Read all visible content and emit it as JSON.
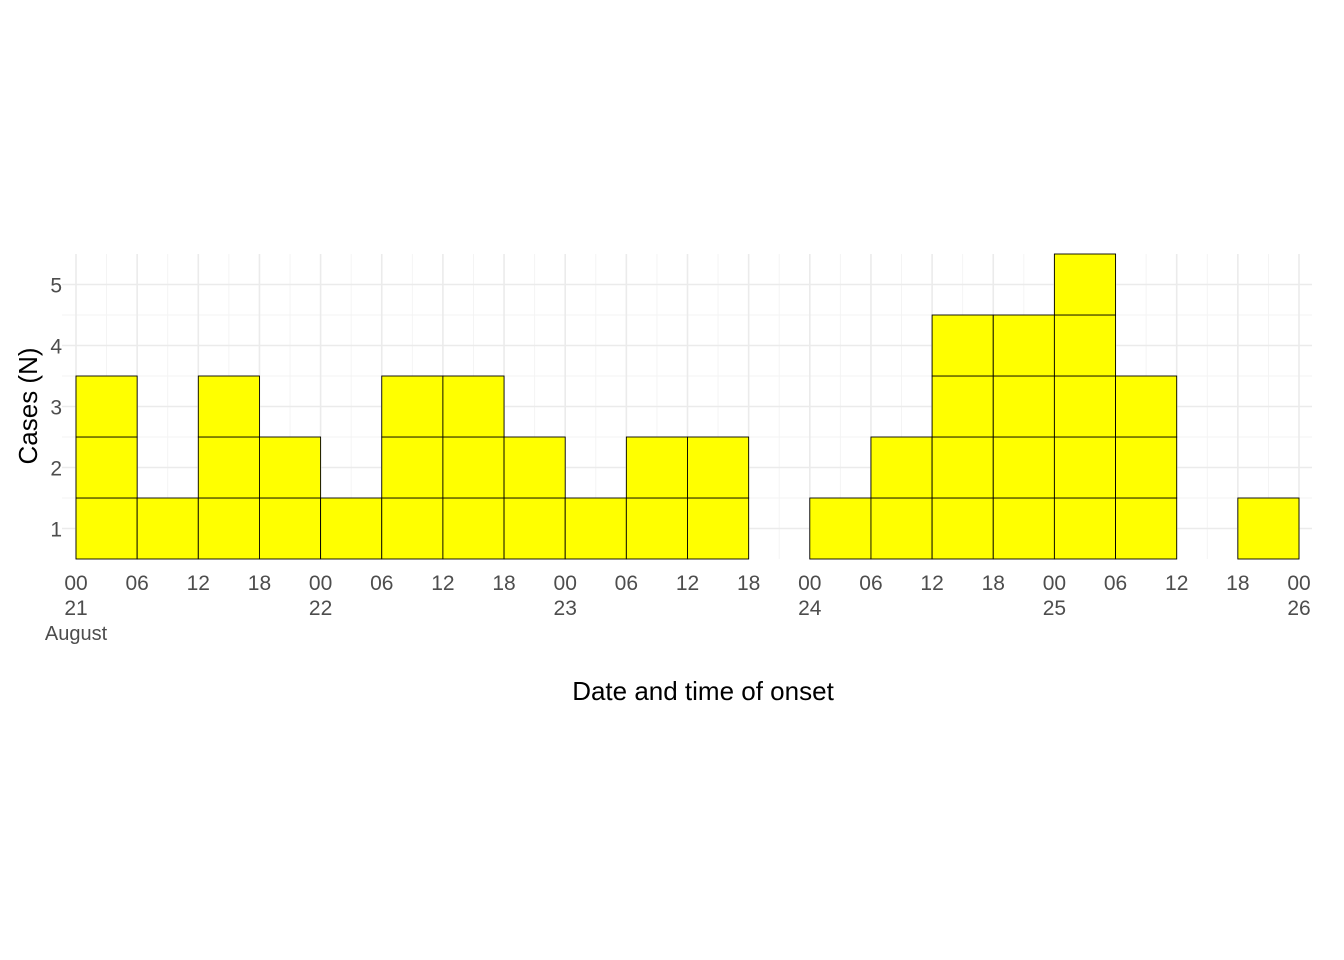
{
  "chart_data": {
    "type": "bar",
    "subtype": "epicurve-stacked-case-boxes",
    "xlabel": "Date and time of onset",
    "ylabel": "Cases (N)",
    "bin_hours": 6,
    "x_start": "August 21 00",
    "x_categories": [
      "21 00",
      "21 06",
      "21 12",
      "21 18",
      "22 00",
      "22 06",
      "22 12",
      "22 18",
      "23 00",
      "23 06",
      "23 12",
      "23 18",
      "24 00",
      "24 06",
      "24 12",
      "24 18",
      "25 00",
      "25 06",
      "25 12",
      "25 18"
    ],
    "values": [
      3,
      1,
      3,
      2,
      1,
      3,
      3,
      2,
      1,
      2,
      2,
      0,
      1,
      2,
      4,
      4,
      5,
      3,
      0,
      1
    ],
    "ylim": [
      0.5,
      5.5
    ],
    "y_ticks": [
      "1",
      "2",
      "3",
      "4",
      "5"
    ],
    "x_ticks": [
      {
        "hour": "00",
        "day": "21",
        "month": "August"
      },
      {
        "hour": "06",
        "day": "",
        "month": ""
      },
      {
        "hour": "12",
        "day": "",
        "month": ""
      },
      {
        "hour": "18",
        "day": "",
        "month": ""
      },
      {
        "hour": "00",
        "day": "22",
        "month": ""
      },
      {
        "hour": "06",
        "day": "",
        "month": ""
      },
      {
        "hour": "12",
        "day": "",
        "month": ""
      },
      {
        "hour": "18",
        "day": "",
        "month": ""
      },
      {
        "hour": "00",
        "day": "23",
        "month": ""
      },
      {
        "hour": "06",
        "day": "",
        "month": ""
      },
      {
        "hour": "12",
        "day": "",
        "month": ""
      },
      {
        "hour": "18",
        "day": "",
        "month": ""
      },
      {
        "hour": "00",
        "day": "24",
        "month": ""
      },
      {
        "hour": "06",
        "day": "",
        "month": ""
      },
      {
        "hour": "12",
        "day": "",
        "month": ""
      },
      {
        "hour": "18",
        "day": "",
        "month": ""
      },
      {
        "hour": "00",
        "day": "25",
        "month": ""
      },
      {
        "hour": "06",
        "day": "",
        "month": ""
      },
      {
        "hour": "12",
        "day": "",
        "month": ""
      },
      {
        "hour": "18",
        "day": "",
        "month": ""
      },
      {
        "hour": "00",
        "day": "26",
        "month": ""
      }
    ],
    "grid": true,
    "legend": "none",
    "fill_color": "#ffff00",
    "border_color": "#000000"
  }
}
